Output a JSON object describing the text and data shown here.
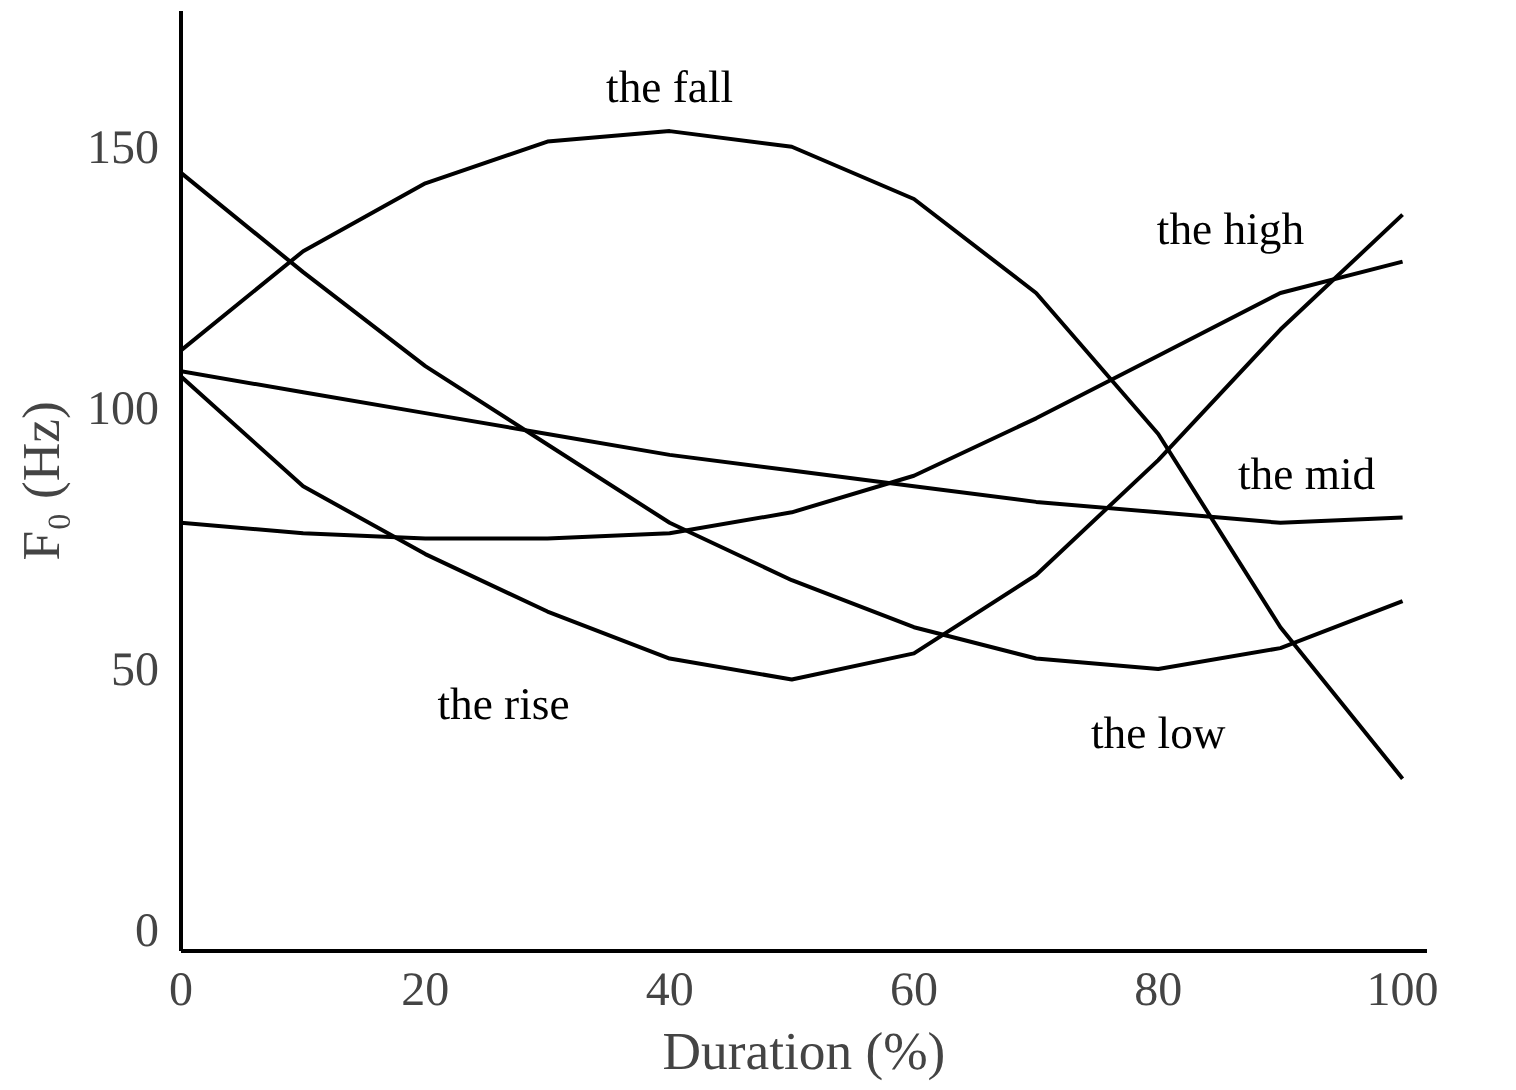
{
  "chart_data": {
    "type": "line",
    "xlabel": "Duration (%)",
    "ylabel": "F₀ (Hz)",
    "x": [
      0,
      10,
      20,
      30,
      40,
      50,
      60,
      70,
      80,
      90,
      100
    ],
    "series": [
      {
        "name": "the fall",
        "color": "#000000",
        "values": [
          111,
          130,
          143,
          151,
          153,
          150,
          140,
          122,
          95,
          58,
          29
        ]
      },
      {
        "name": "the high",
        "color": "#000000",
        "values": [
          78,
          76,
          75,
          75,
          76,
          80,
          87,
          98,
          110,
          122,
          128
        ]
      },
      {
        "name": "the mid",
        "color": "#000000",
        "values": [
          107,
          103,
          99,
          95,
          91,
          88,
          85,
          82,
          80,
          78,
          79
        ]
      },
      {
        "name": "the low",
        "color": "#000000",
        "values": [
          145,
          126,
          108,
          93,
          78,
          67,
          58,
          52,
          50,
          54,
          63
        ]
      },
      {
        "name": "the rise",
        "color": "#000000",
        "values": [
          106,
          85,
          72,
          61,
          52,
          48,
          53,
          68,
          90,
          115,
          137
        ]
      }
    ],
    "xlim": [
      0,
      102
    ],
    "ylim": [
      -4,
      176
    ],
    "xticks": [
      0,
      20,
      40,
      60,
      80,
      100
    ],
    "yticks": [
      0,
      50,
      100,
      150
    ],
    "grid": false,
    "legend": false,
    "marker": "none",
    "line_style": "solid"
  }
}
